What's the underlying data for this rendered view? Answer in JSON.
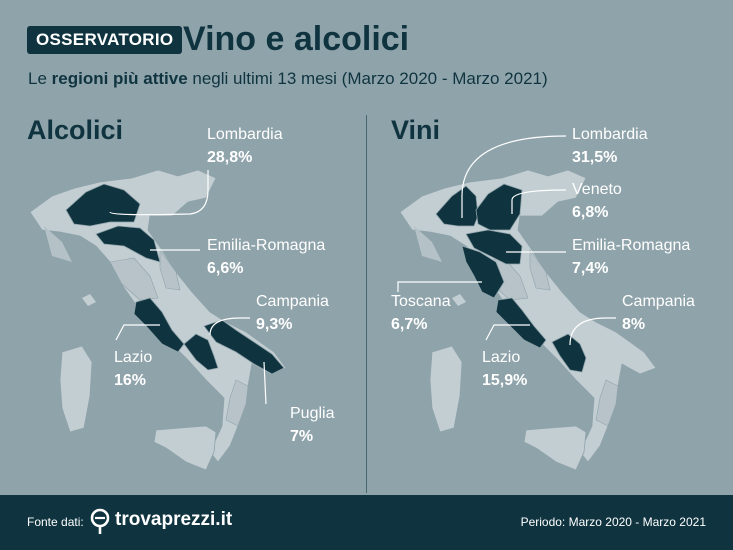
{
  "header": {
    "badge": "OSSERVATORIO",
    "title": "Vino e alcolici",
    "subtitle_pre": "Le ",
    "subtitle_bold": "regioni più attive",
    "subtitle_post": " negli ultimi 13 mesi (Marzo 2020 - Marzo 2021)"
  },
  "colors": {
    "background": "#8fa3aa",
    "dark": "#0f3440",
    "map_light": "#c3ced2",
    "highlight": "#0f3440",
    "text_light": "#ffffff"
  },
  "alcolici": {
    "title": "Alcolici",
    "regions": [
      {
        "name": "Lombardia",
        "value": "28,8%"
      },
      {
        "name": "Emilia-Romagna",
        "value": "6,6%"
      },
      {
        "name": "Campania",
        "value": "9,3%"
      },
      {
        "name": "Lazio",
        "value": "16%"
      },
      {
        "name": "Puglia",
        "value": "7%"
      }
    ]
  },
  "vini": {
    "title": "Vini",
    "regions": [
      {
        "name": "Lombardia",
        "value": "31,5%"
      },
      {
        "name": "Veneto",
        "value": "6,8%"
      },
      {
        "name": "Emilia-Romagna",
        "value": "7,4%"
      },
      {
        "name": "Toscana",
        "value": "6,7%"
      },
      {
        "name": "Campania",
        "value": "8%"
      },
      {
        "name": "Lazio",
        "value": "15,9%"
      }
    ]
  },
  "footer": {
    "source_label": "Fonte dati:",
    "brand": "trovaprezzi.it",
    "brand_icon": "trovaprezzi-logo-icon",
    "period": "Periodo: Marzo 2020 - Marzo 2021"
  }
}
